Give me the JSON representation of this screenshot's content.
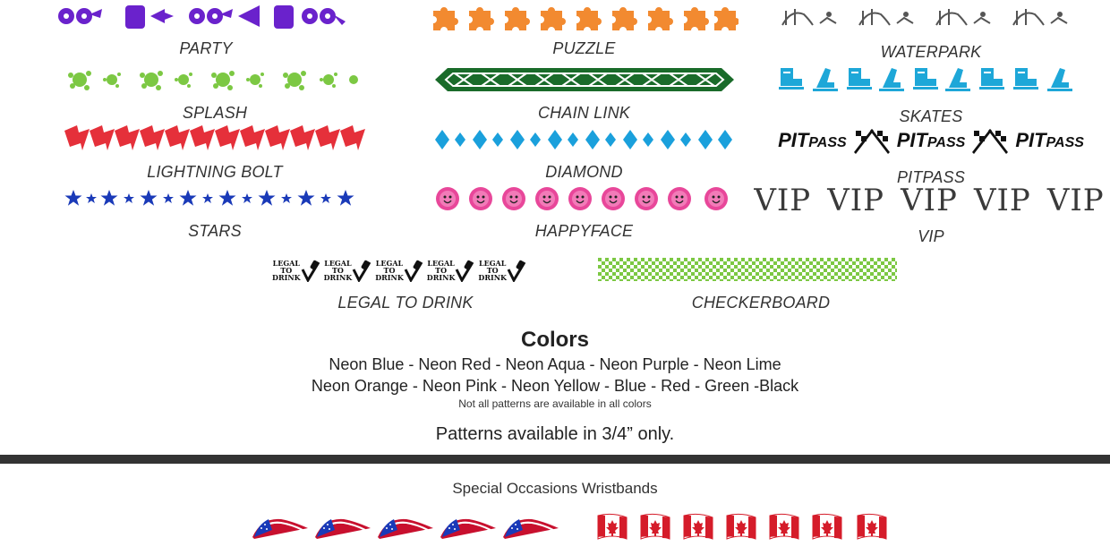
{
  "patterns": {
    "party": {
      "label": "PARTY",
      "color": "#6a22cc",
      "icon": "party-balloon-icon"
    },
    "puzzle": {
      "label": "PUZZLE",
      "color": "#f28a30",
      "icon": "puzzle-piece-icon"
    },
    "waterpark": {
      "label": "WATERPARK",
      "color": "#555555",
      "icon": "water-slide-icon"
    },
    "splash": {
      "label": "SPLASH",
      "color": "#7cc843",
      "icon": "splash-icon"
    },
    "chain_link": {
      "label": "CHAIN LINK",
      "color": "#1a6b2a",
      "icon": "celtic-chain-icon"
    },
    "skates": {
      "label": "SKATES",
      "color": "#1ea7d8",
      "icon": "skate-icon"
    },
    "lightning_bolt": {
      "label": "LIGHTNING BOLT",
      "color": "#e5303a",
      "icon": "lightning-bolt-icon"
    },
    "diamond": {
      "label": "DIAMOND",
      "color": "#1aa0dc",
      "icon": "diamond-icon"
    },
    "pitpass": {
      "label": "PITPASS",
      "color": "#111111",
      "icon": "checkered-flag-icon",
      "word_pit": "PIT",
      "word_pass": "PASS"
    },
    "stars": {
      "label": "STARS",
      "color": "#1a3ab8",
      "icon": "star-icon"
    },
    "happyface": {
      "label": "HAPPYFACE",
      "color": "#e8479a",
      "icon": "happy-sun-icon"
    },
    "vip": {
      "label": "VIP",
      "color": "#3a3a3a",
      "word": "VIP"
    },
    "legal_to_drink": {
      "label": "LEGAL TO DRINK",
      "color": "#111111",
      "line1": "LEGAL",
      "line2": "TO",
      "line3": "DRINK",
      "icon": "check-bottle-icon"
    },
    "checkerboard": {
      "label": "CHECKERBOARD",
      "color": "#7cc843",
      "icon": "checkerboard-icon"
    }
  },
  "colors": {
    "title": "Colors",
    "line1": "Neon Blue - Neon Red - Neon Aqua - Neon Purple - Neon Lime",
    "line2": "Neon Orange - Neon Pink - Neon Yellow - Blue - Red - Green -Black",
    "note": "Not all patterns are available in all colors"
  },
  "availability": "Patterns available in 3/4” only.",
  "special": {
    "title": "Special Occasions Wristbands",
    "usa_flag_icon": "usa-flag-icon",
    "canada_flag_icon": "canada-flag-icon"
  }
}
